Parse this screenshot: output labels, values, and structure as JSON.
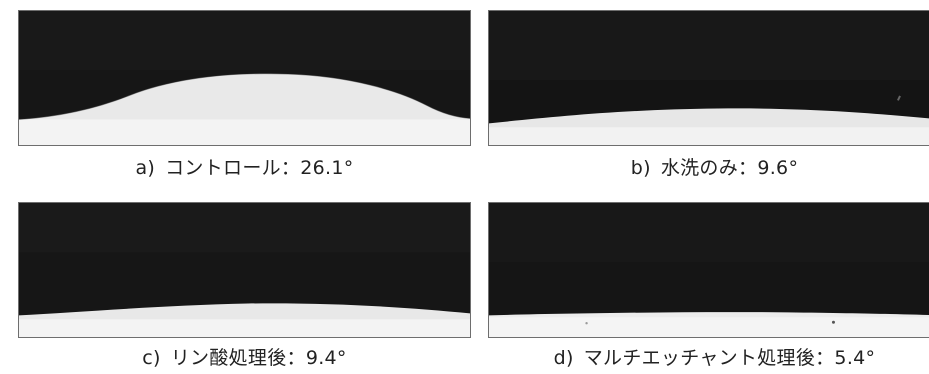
{
  "figure": {
    "panels": [
      {
        "id": "a",
        "letter": "a)",
        "caption": "コントロール：26.1°",
        "contact_angle_deg": 26.1
      },
      {
        "id": "b",
        "letter": "b)",
        "caption": "水洗のみ：9.6°",
        "contact_angle_deg": 9.6
      },
      {
        "id": "c",
        "letter": "c)",
        "caption": "リン酸処理後：9.4°",
        "contact_angle_deg": 9.4
      },
      {
        "id": "d",
        "letter": "d)",
        "caption": "マルチエッチャント処理後：5.4°",
        "contact_angle_deg": 5.4
      }
    ],
    "colors": {
      "background": "#141414",
      "droplet": "#e8e8e8",
      "substrate": "#f2f2f2",
      "border": "#6e6e6e",
      "text": "#222222"
    }
  }
}
